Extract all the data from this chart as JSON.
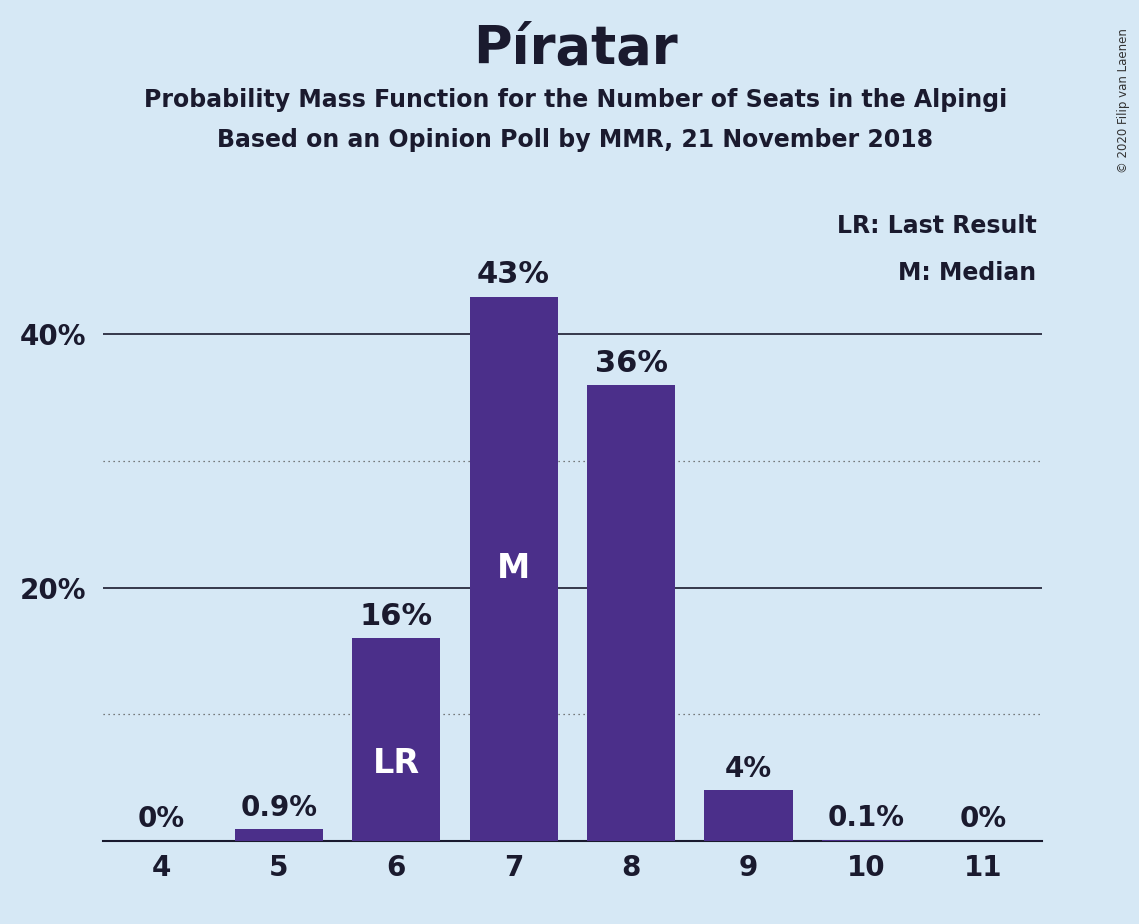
{
  "title": "Píratar",
  "subtitle1": "Probability Mass Function for the Number of Seats in the Alpingi",
  "subtitle2": "Based on an Opinion Poll by MMR, 21 November 2018",
  "copyright": "© 2020 Filip van Laenen",
  "seats": [
    4,
    5,
    6,
    7,
    8,
    9,
    10,
    11
  ],
  "probabilities": [
    0.0,
    0.9,
    16.0,
    43.0,
    36.0,
    4.0,
    0.1,
    0.0
  ],
  "bar_color": "#4B2F8A",
  "background_color": "#D6E8F5",
  "label_color_outside": "#1a1a2e",
  "label_color_inside": "#ffffff",
  "median_seat": 7,
  "last_result_seat": 6,
  "legend_lr": "LR: Last Result",
  "legend_m": "M: Median",
  "ylim": [
    0,
    50
  ],
  "ytick_values": [
    20,
    40
  ],
  "ytick_labels": [
    "20%",
    "40%"
  ],
  "solid_gridlines": [
    20,
    40
  ],
  "dotted_gridlines": [
    10,
    30
  ],
  "bar_width": 0.75,
  "title_fontsize": 38,
  "subtitle_fontsize": 17,
  "tick_fontsize": 20,
  "label_fontsize_large": 22,
  "label_fontsize_small": 20,
  "legend_fontsize": 17,
  "inside_label_fontsize": 24
}
